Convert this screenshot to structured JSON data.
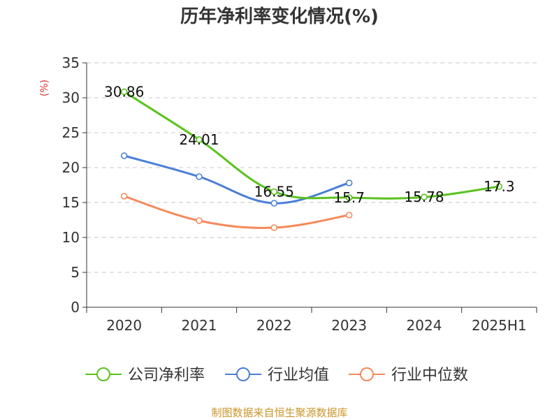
{
  "chart_data": {
    "type": "line",
    "title": "历年净利率变化情况(%)",
    "ylabel": "(%)",
    "xlabel": "",
    "categories": [
      "2020",
      "2021",
      "2022",
      "2023",
      "2024",
      "2025H1"
    ],
    "ylim": [
      0,
      35
    ],
    "yticks": [
      0,
      5,
      10,
      15,
      20,
      25,
      30,
      35
    ],
    "grid": true,
    "legend_position": "bottom",
    "series": [
      {
        "name": "公司净利率",
        "color": "#5ac21e",
        "values": [
          30.86,
          24.01,
          16.55,
          15.7,
          15.78,
          17.3
        ],
        "labels": [
          "30.86",
          "24.01",
          "16.55",
          "15.7",
          "15.78",
          "17.3"
        ]
      },
      {
        "name": "行业均值",
        "color": "#4a7fd6",
        "values": [
          21.7,
          18.7,
          14.9,
          17.8,
          null,
          null
        ]
      },
      {
        "name": "行业中位数",
        "color": "#f5895a",
        "values": [
          15.9,
          12.4,
          11.4,
          13.2,
          null,
          null
        ]
      }
    ]
  },
  "source": "制图数据来自恒生聚源数据库"
}
